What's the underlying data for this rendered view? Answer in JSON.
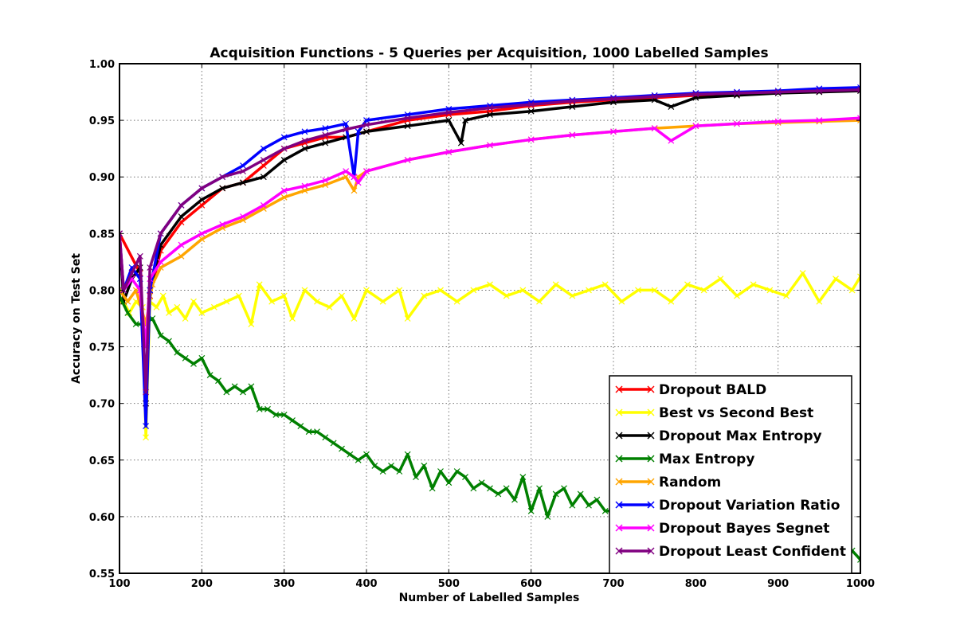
{
  "chart_data": {
    "type": "line",
    "title": "Acquisition Functions - 5 Queries per Acquisition, 1000 Labelled Samples",
    "xlabel": "Number of Labelled Samples",
    "ylabel": "Accuracy on Test Set",
    "xlim": [
      100,
      1000
    ],
    "ylim": [
      0.55,
      1.0
    ],
    "xticks": [
      100,
      200,
      300,
      400,
      500,
      600,
      700,
      800,
      900,
      1000
    ],
    "xtick_labels": [
      "100",
      "200",
      "300",
      "400",
      "500",
      "600",
      "700",
      "800",
      "900",
      "1000"
    ],
    "yticks": [
      0.55,
      0.6,
      0.65,
      0.7,
      0.75,
      0.8,
      0.85,
      0.9,
      0.95,
      1.0
    ],
    "ytick_labels": [
      "0.55",
      "0.60",
      "0.65",
      "0.70",
      "0.75",
      "0.80",
      "0.85",
      "0.90",
      "0.95",
      "1.00"
    ],
    "grid": true,
    "legend_position": "lower-right",
    "marker": "x",
    "series": [
      {
        "name": "Dropout BALD",
        "color": "#ff0000",
        "x": [
          100,
          125,
          132,
          137,
          150,
          175,
          200,
          225,
          250,
          275,
          300,
          325,
          350,
          375,
          400,
          450,
          500,
          550,
          600,
          650,
          700,
          750,
          800,
          850,
          900,
          950,
          1000
        ],
        "y": [
          0.85,
          0.815,
          0.7,
          0.795,
          0.835,
          0.86,
          0.875,
          0.89,
          0.895,
          0.91,
          0.925,
          0.93,
          0.935,
          0.935,
          0.94,
          0.95,
          0.955,
          0.958,
          0.963,
          0.966,
          0.968,
          0.97,
          0.972,
          0.973,
          0.975,
          0.976,
          0.977
        ]
      },
      {
        "name": "Best vs Second Best",
        "color": "#ffff00",
        "x": [
          100,
          105,
          112,
          120,
          128,
          132,
          137,
          145,
          153,
          160,
          170,
          180,
          190,
          200,
          215,
          230,
          245,
          260,
          270,
          285,
          300,
          310,
          325,
          340,
          355,
          370,
          385,
          400,
          420,
          440,
          450,
          470,
          490,
          510,
          530,
          550,
          570,
          590,
          610,
          630,
          650,
          670,
          690,
          710,
          730,
          750,
          770,
          790,
          810,
          830,
          850,
          870,
          890,
          910,
          930,
          950,
          970,
          990,
          1000
        ],
        "y": [
          0.79,
          0.79,
          0.78,
          0.79,
          0.785,
          0.67,
          0.79,
          0.785,
          0.795,
          0.78,
          0.785,
          0.775,
          0.79,
          0.78,
          0.785,
          0.79,
          0.795,
          0.77,
          0.805,
          0.79,
          0.795,
          0.775,
          0.8,
          0.79,
          0.785,
          0.795,
          0.775,
          0.8,
          0.79,
          0.8,
          0.775,
          0.795,
          0.8,
          0.79,
          0.8,
          0.805,
          0.795,
          0.8,
          0.79,
          0.805,
          0.795,
          0.8,
          0.805,
          0.79,
          0.8,
          0.8,
          0.79,
          0.805,
          0.8,
          0.81,
          0.795,
          0.805,
          0.8,
          0.795,
          0.815,
          0.79,
          0.81,
          0.8,
          0.812
        ]
      },
      {
        "name": "Dropout Max Entropy",
        "color": "#000000",
        "x": [
          100,
          105,
          115,
          125,
          132,
          137,
          150,
          175,
          200,
          225,
          250,
          275,
          300,
          325,
          350,
          375,
          400,
          450,
          500,
          515,
          520,
          550,
          600,
          650,
          700,
          750,
          770,
          800,
          850,
          900,
          950,
          1000
        ],
        "y": [
          0.85,
          0.79,
          0.81,
          0.82,
          0.7,
          0.8,
          0.84,
          0.865,
          0.88,
          0.89,
          0.895,
          0.9,
          0.915,
          0.925,
          0.93,
          0.935,
          0.94,
          0.945,
          0.95,
          0.93,
          0.95,
          0.955,
          0.958,
          0.962,
          0.966,
          0.968,
          0.962,
          0.97,
          0.972,
          0.974,
          0.975,
          0.976
        ]
      },
      {
        "name": "Max Entropy",
        "color": "#008000",
        "x": [
          100,
          110,
          120,
          130,
          140,
          150,
          160,
          170,
          180,
          190,
          200,
          210,
          220,
          230,
          240,
          250,
          260,
          270,
          280,
          290,
          300,
          310,
          320,
          330,
          340,
          350,
          360,
          370,
          380,
          390,
          400,
          410,
          420,
          430,
          440,
          450,
          460,
          470,
          480,
          490,
          500,
          510,
          520,
          530,
          540,
          550,
          560,
          570,
          580,
          590,
          600,
          610,
          620,
          630,
          640,
          650,
          660,
          670,
          680,
          690,
          700,
          710,
          720,
          730,
          740,
          750,
          760,
          770,
          780,
          790,
          800,
          810,
          820,
          830,
          840,
          850,
          860,
          870,
          880,
          890,
          900,
          910,
          920,
          930,
          940,
          950,
          960,
          970,
          980,
          990,
          1000
        ],
        "y": [
          0.795,
          0.78,
          0.77,
          0.77,
          0.775,
          0.76,
          0.755,
          0.745,
          0.74,
          0.735,
          0.74,
          0.725,
          0.72,
          0.71,
          0.715,
          0.71,
          0.715,
          0.695,
          0.695,
          0.69,
          0.69,
          0.685,
          0.68,
          0.675,
          0.675,
          0.67,
          0.665,
          0.66,
          0.655,
          0.65,
          0.655,
          0.645,
          0.64,
          0.645,
          0.64,
          0.655,
          0.635,
          0.645,
          0.625,
          0.64,
          0.63,
          0.64,
          0.635,
          0.625,
          0.63,
          0.625,
          0.62,
          0.625,
          0.615,
          0.635,
          0.605,
          0.625,
          0.6,
          0.62,
          0.625,
          0.61,
          0.62,
          0.61,
          0.615,
          0.605,
          0.605,
          0.6,
          0.61,
          0.6,
          0.605,
          0.6,
          0.61,
          0.6,
          0.6,
          0.605,
          0.6,
          0.595,
          0.6,
          0.6,
          0.595,
          0.6,
          0.59,
          0.595,
          0.59,
          0.59,
          0.585,
          0.59,
          0.585,
          0.585,
          0.58,
          0.58,
          0.575,
          0.58,
          0.575,
          0.57,
          0.562
        ]
      },
      {
        "name": "Random",
        "color": "#ffa500",
        "x": [
          100,
          110,
          120,
          132,
          140,
          150,
          175,
          200,
          225,
          250,
          275,
          300,
          325,
          350,
          375,
          385,
          390,
          400,
          450,
          500,
          550,
          600,
          650,
          700,
          750,
          800,
          850,
          900,
          950,
          1000
        ],
        "y": [
          0.8,
          0.79,
          0.8,
          0.77,
          0.805,
          0.82,
          0.83,
          0.845,
          0.855,
          0.862,
          0.872,
          0.882,
          0.888,
          0.893,
          0.9,
          0.888,
          0.9,
          0.905,
          0.915,
          0.922,
          0.928,
          0.933,
          0.937,
          0.94,
          0.943,
          0.945,
          0.947,
          0.948,
          0.949,
          0.95
        ]
      },
      {
        "name": "Dropout Variation Ratio",
        "color": "#0000ff",
        "x": [
          100,
          105,
          115,
          125,
          132,
          137,
          150,
          175,
          200,
          225,
          250,
          275,
          300,
          325,
          350,
          375,
          385,
          390,
          400,
          450,
          500,
          550,
          600,
          650,
          700,
          750,
          800,
          850,
          900,
          950,
          1000
        ],
        "y": [
          0.85,
          0.8,
          0.82,
          0.81,
          0.68,
          0.8,
          0.85,
          0.875,
          0.89,
          0.9,
          0.91,
          0.925,
          0.935,
          0.94,
          0.943,
          0.947,
          0.9,
          0.94,
          0.95,
          0.955,
          0.96,
          0.963,
          0.966,
          0.968,
          0.97,
          0.972,
          0.974,
          0.975,
          0.976,
          0.978,
          0.979
        ]
      },
      {
        "name": "Dropout Bayes Segnet",
        "color": "#ff00ff",
        "x": [
          100,
          105,
          115,
          125,
          132,
          137,
          150,
          175,
          200,
          225,
          250,
          275,
          300,
          325,
          350,
          375,
          385,
          390,
          400,
          450,
          500,
          550,
          600,
          650,
          700,
          750,
          770,
          800,
          850,
          900,
          950,
          1000
        ],
        "y": [
          0.85,
          0.8,
          0.81,
          0.8,
          0.75,
          0.81,
          0.825,
          0.84,
          0.85,
          0.858,
          0.865,
          0.875,
          0.888,
          0.892,
          0.897,
          0.905,
          0.9,
          0.895,
          0.905,
          0.915,
          0.922,
          0.928,
          0.933,
          0.937,
          0.94,
          0.943,
          0.932,
          0.945,
          0.947,
          0.949,
          0.95,
          0.952
        ]
      },
      {
        "name": "Dropout Least Confident",
        "color": "#800080",
        "x": [
          100,
          105,
          115,
          125,
          132,
          137,
          150,
          175,
          200,
          225,
          250,
          275,
          300,
          325,
          350,
          375,
          400,
          450,
          500,
          550,
          600,
          650,
          700,
          750,
          800,
          850,
          900,
          950,
          1000
        ],
        "y": [
          0.85,
          0.8,
          0.815,
          0.83,
          0.71,
          0.82,
          0.85,
          0.875,
          0.89,
          0.9,
          0.905,
          0.915,
          0.925,
          0.932,
          0.937,
          0.942,
          0.946,
          0.952,
          0.957,
          0.961,
          0.964,
          0.967,
          0.969,
          0.971,
          0.973,
          0.974,
          0.975,
          0.976,
          0.977
        ]
      }
    ]
  }
}
